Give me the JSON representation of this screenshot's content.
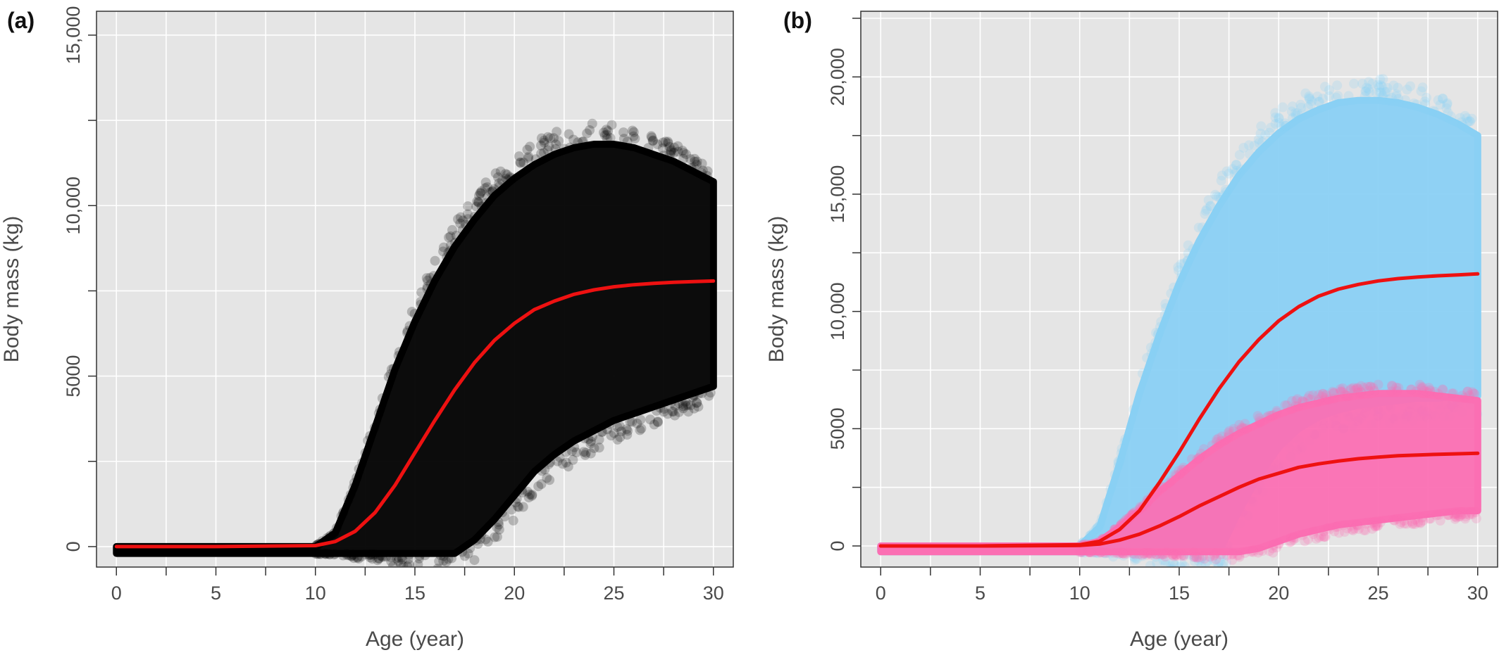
{
  "chart_data": [
    {
      "panel_label": "(a)",
      "type": "scatter",
      "xlabel": "Age (year)",
      "ylabel": "Body mass (kg)",
      "xlim": [
        -1,
        31
      ],
      "ylim": [
        -600,
        15700
      ],
      "x_ticks": [
        0,
        5,
        10,
        15,
        20,
        25,
        30
      ],
      "x_tick_labels": [
        "0",
        "5",
        "10",
        "15",
        "20",
        "25",
        "30"
      ],
      "y_ticks": [
        0,
        5000,
        10000,
        15000
      ],
      "y_tick_labels": [
        "0",
        "5000",
        "10,000",
        "15,000"
      ],
      "grid": true,
      "background": "#e5e5e5",
      "series": [
        {
          "kind": "point-cloud",
          "color": "#000000",
          "age": [
            0,
            10,
            11,
            12,
            13,
            14,
            15,
            16,
            17,
            18,
            19,
            20,
            21,
            22,
            23,
            24,
            25,
            26,
            27,
            28,
            29,
            30
          ],
          "upper": [
            0,
            0,
            400,
            1800,
            3500,
            5200,
            6600,
            7800,
            8800,
            9600,
            10300,
            10800,
            11200,
            11500,
            11700,
            11800,
            11800,
            11700,
            11500,
            11300,
            11000,
            10700
          ],
          "lower": [
            -200,
            -200,
            -200,
            -200,
            -200,
            -200,
            -200,
            -200,
            -200,
            200,
            800,
            1500,
            2200,
            2700,
            3100,
            3400,
            3700,
            3900,
            4100,
            4300,
            4500,
            4700
          ]
        },
        {
          "kind": "line",
          "color": "#ee1111",
          "x": [
            0,
            5,
            10,
            11,
            12,
            13,
            14,
            15,
            16,
            17,
            18,
            19,
            20,
            21,
            22,
            23,
            24,
            25,
            26,
            27,
            28,
            29,
            30
          ],
          "y": [
            0,
            0,
            30,
            150,
            450,
            1000,
            1800,
            2750,
            3700,
            4600,
            5400,
            6050,
            6550,
            6950,
            7200,
            7400,
            7530,
            7620,
            7680,
            7720,
            7750,
            7770,
            7790
          ]
        }
      ]
    },
    {
      "panel_label": "(b)",
      "type": "scatter",
      "xlabel": "Age (year)",
      "ylabel": "Body mass (kg)",
      "xlim": [
        -1,
        31
      ],
      "ylim": [
        -900,
        22800
      ],
      "x_ticks": [
        0,
        5,
        10,
        15,
        20,
        25,
        30
      ],
      "x_tick_labels": [
        "0",
        "5",
        "10",
        "15",
        "20",
        "25",
        "30"
      ],
      "y_ticks": [
        0,
        5000,
        10000,
        15000,
        20000
      ],
      "y_tick_labels": [
        "0",
        "5000",
        "10,000",
        "15,000",
        "20,000"
      ],
      "grid": true,
      "background": "#e5e5e5",
      "series": [
        {
          "kind": "point-cloud",
          "color": "#8ad0f4",
          "age": [
            0,
            10,
            11,
            12,
            13,
            14,
            15,
            16,
            17,
            18,
            19,
            20,
            21,
            22,
            23,
            24,
            25,
            26,
            27,
            28,
            29,
            30
          ],
          "upper": [
            0,
            0,
            800,
            3500,
            6500,
            9000,
            11200,
            13000,
            14500,
            15800,
            16800,
            17600,
            18200,
            18600,
            18900,
            19000,
            19000,
            18900,
            18700,
            18400,
            18000,
            17500
          ],
          "lower": [
            -250,
            -250,
            -250,
            -250,
            -250,
            -250,
            -250,
            -250,
            -250,
            1500,
            3000,
            4200,
            5000,
            5500,
            5800,
            6000,
            6100,
            6200,
            6300,
            6300,
            6400,
            6400
          ]
        },
        {
          "kind": "point-cloud",
          "color": "#fb6fb3",
          "age": [
            0,
            10,
            11,
            12,
            13,
            14,
            15,
            16,
            17,
            18,
            19,
            20,
            21,
            22,
            23,
            24,
            25,
            26,
            27,
            28,
            29,
            30
          ],
          "upper": [
            0,
            0,
            200,
            800,
            1500,
            2300,
            3000,
            3700,
            4300,
            4800,
            5200,
            5600,
            5900,
            6100,
            6300,
            6400,
            6500,
            6500,
            6500,
            6400,
            6300,
            6200
          ],
          "lower": [
            -250,
            -250,
            -250,
            -250,
            -250,
            -250,
            -250,
            -250,
            -250,
            -250,
            -100,
            200,
            500,
            700,
            900,
            1000,
            1100,
            1200,
            1300,
            1400,
            1500,
            1500
          ]
        },
        {
          "kind": "line",
          "color": "#ee1111",
          "x": [
            0,
            5,
            10,
            11,
            12,
            13,
            14,
            15,
            16,
            17,
            18,
            19,
            20,
            21,
            22,
            23,
            24,
            25,
            26,
            27,
            28,
            29,
            30
          ],
          "y": [
            0,
            0,
            50,
            200,
            700,
            1500,
            2700,
            4000,
            5400,
            6700,
            7850,
            8800,
            9600,
            10200,
            10650,
            10950,
            11150,
            11300,
            11400,
            11470,
            11520,
            11560,
            11600
          ]
        },
        {
          "kind": "line",
          "color": "#ee1111",
          "x": [
            0,
            5,
            10,
            11,
            12,
            13,
            14,
            15,
            16,
            17,
            18,
            19,
            20,
            21,
            22,
            23,
            24,
            25,
            26,
            27,
            28,
            29,
            30
          ],
          "y": [
            0,
            0,
            20,
            80,
            250,
            500,
            850,
            1250,
            1700,
            2100,
            2500,
            2850,
            3100,
            3350,
            3500,
            3620,
            3720,
            3790,
            3850,
            3880,
            3910,
            3930,
            3950
          ]
        }
      ]
    }
  ]
}
